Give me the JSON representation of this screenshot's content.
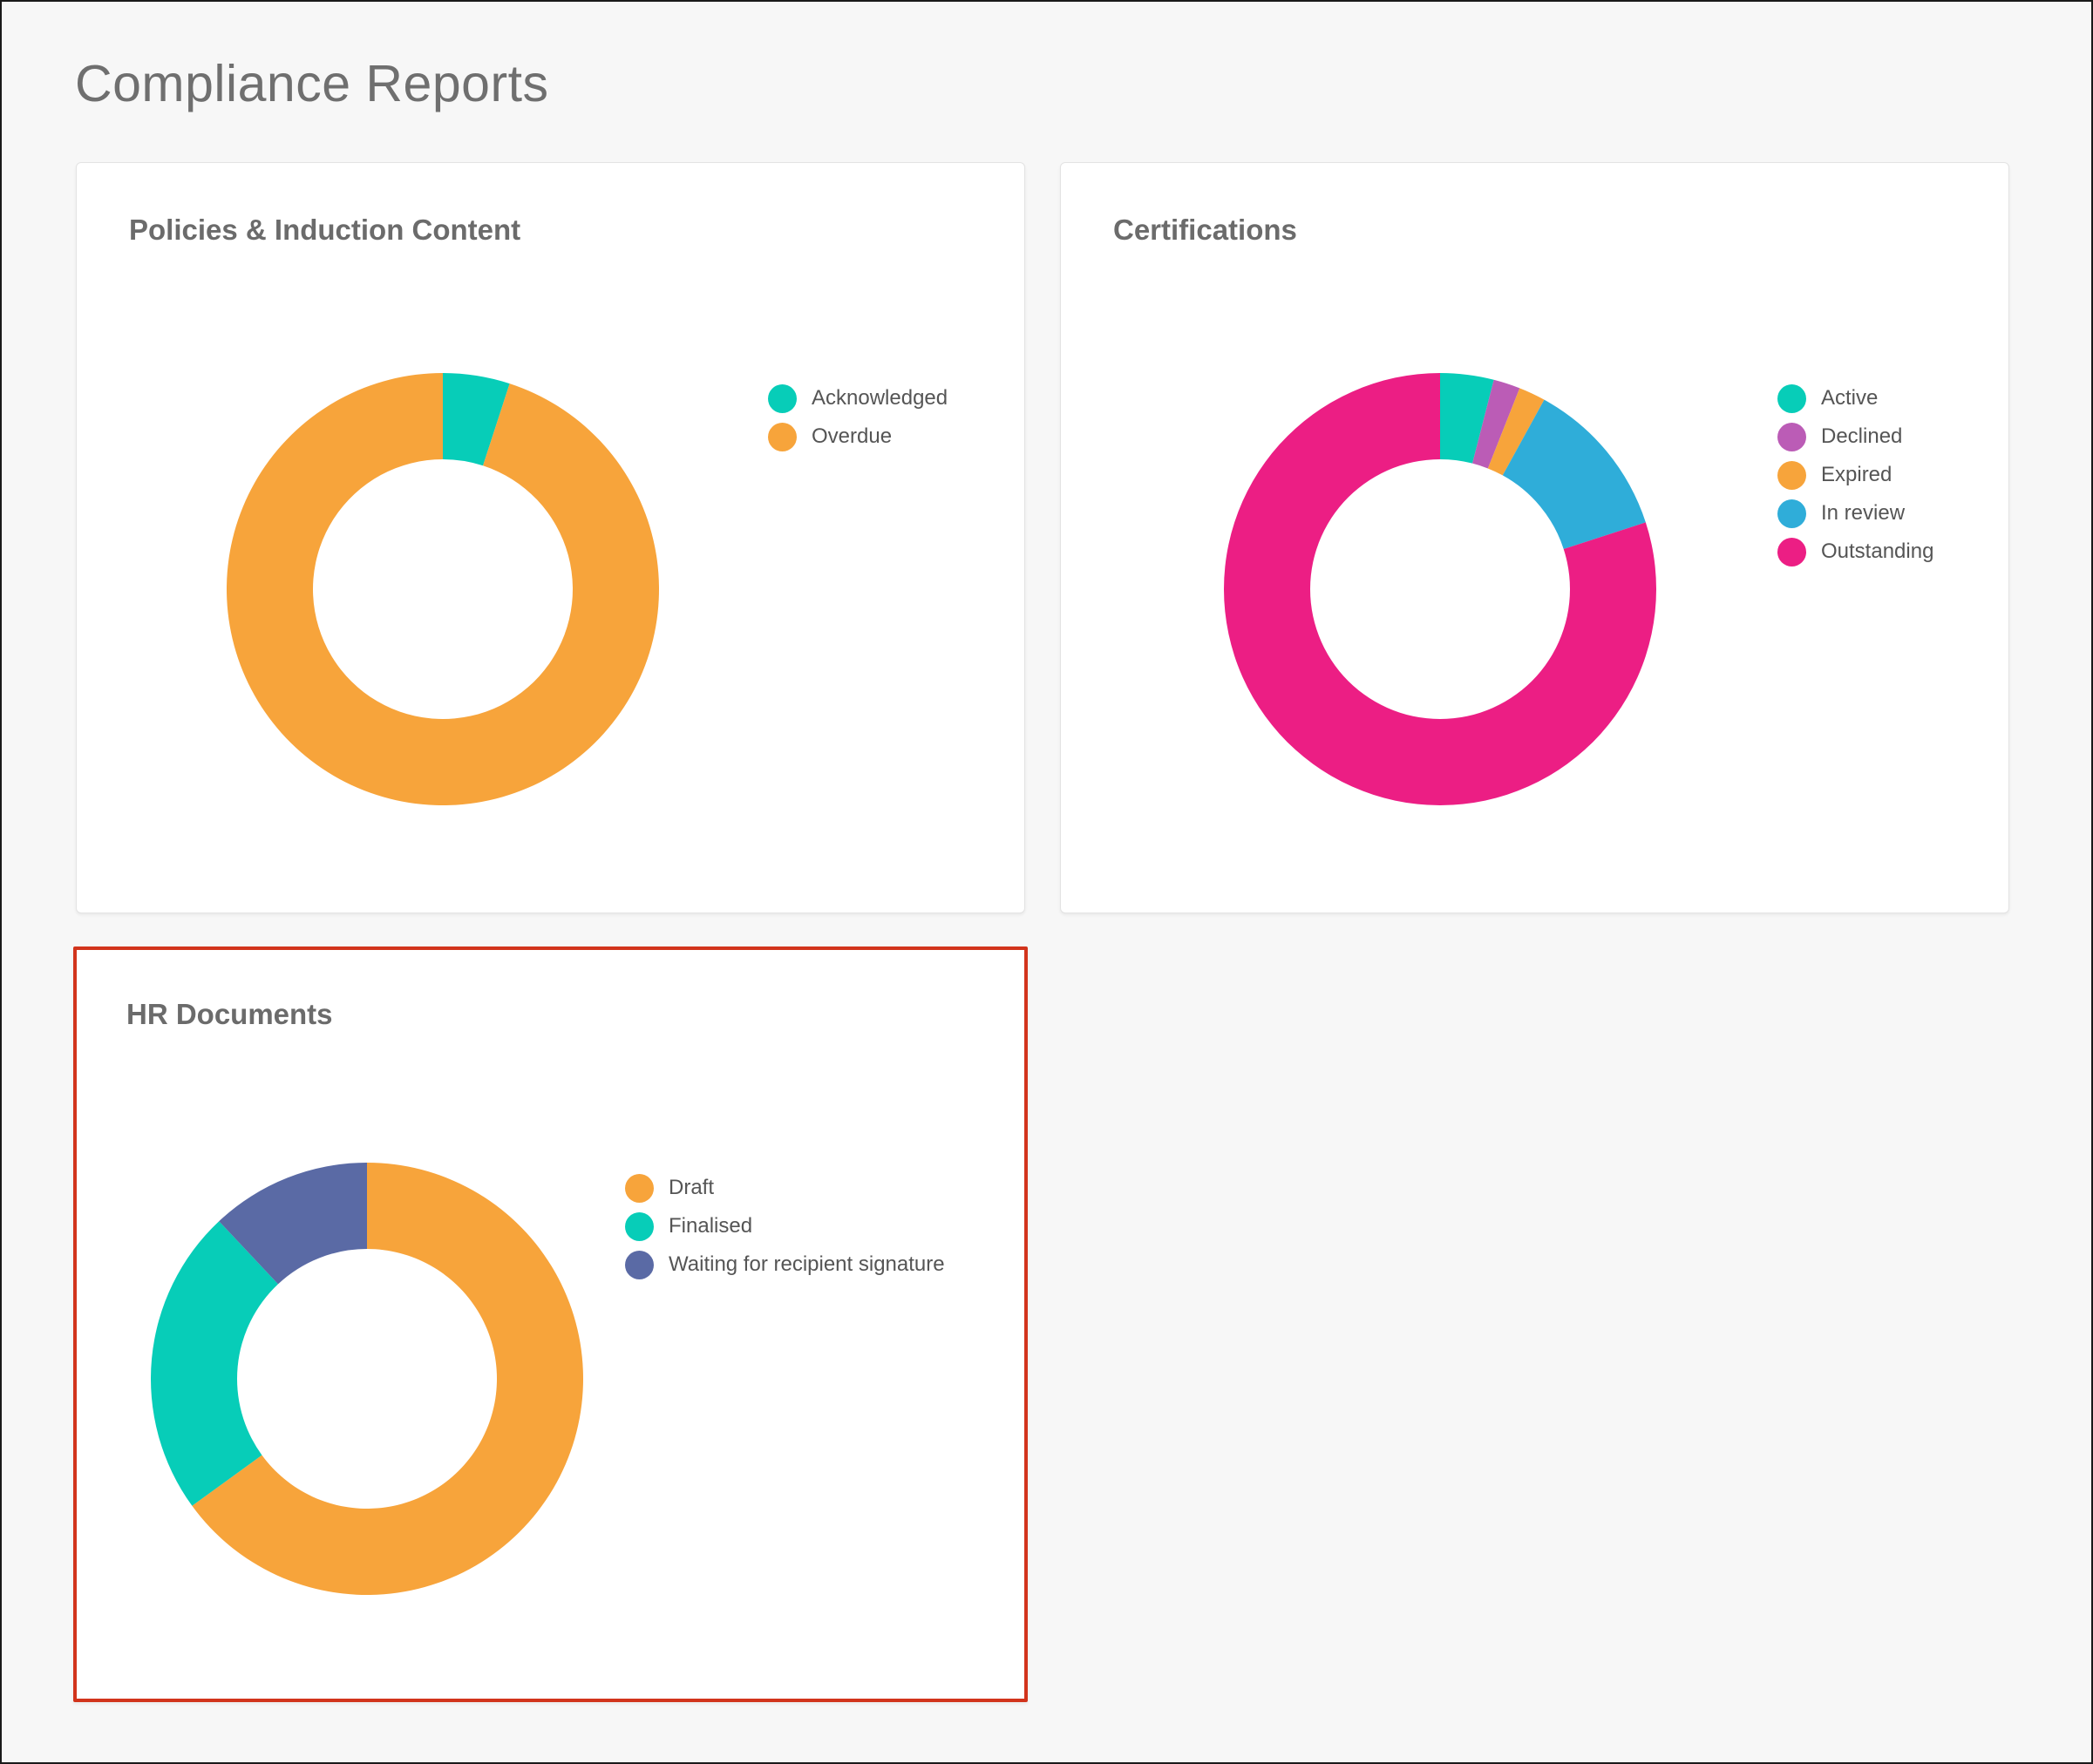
{
  "page": {
    "title": "Compliance Reports"
  },
  "colors": {
    "teal": "#07cdb8",
    "orange": "#f7a43b",
    "purple": "#bb5cb6",
    "blue": "#2fadd9",
    "pink": "#ec1e84",
    "indigo": "#5a6aa5",
    "highlight_border": "#d2341c"
  },
  "cards": [
    {
      "title": "Policies & Induction Content",
      "chart_data": {
        "type": "pie",
        "title": "Policies & Induction Content",
        "categories": [
          "Acknowledged",
          "Overdue"
        ],
        "values": [
          5,
          95
        ],
        "colors": [
          "#07cdb8",
          "#f7a43b"
        ],
        "legend": "right"
      }
    },
    {
      "title": "Certifications",
      "chart_data": {
        "type": "pie",
        "title": "Certifications",
        "categories": [
          "Active",
          "Declined",
          "Expired",
          "In review",
          "Outstanding"
        ],
        "values": [
          4,
          2,
          2,
          12,
          80
        ],
        "colors": [
          "#07cdb8",
          "#bb5cb6",
          "#f7a43b",
          "#2fadd9",
          "#ec1e84"
        ],
        "legend": "right"
      }
    },
    {
      "title": "HR Documents",
      "chart_data": {
        "type": "pie",
        "title": "HR Documents",
        "categories": [
          "Draft",
          "Finalised",
          "Waiting for recipient signature"
        ],
        "values": [
          65,
          23,
          12
        ],
        "colors": [
          "#f7a43b",
          "#07cdb8",
          "#5a6aa5"
        ],
        "legend": "right"
      }
    }
  ]
}
